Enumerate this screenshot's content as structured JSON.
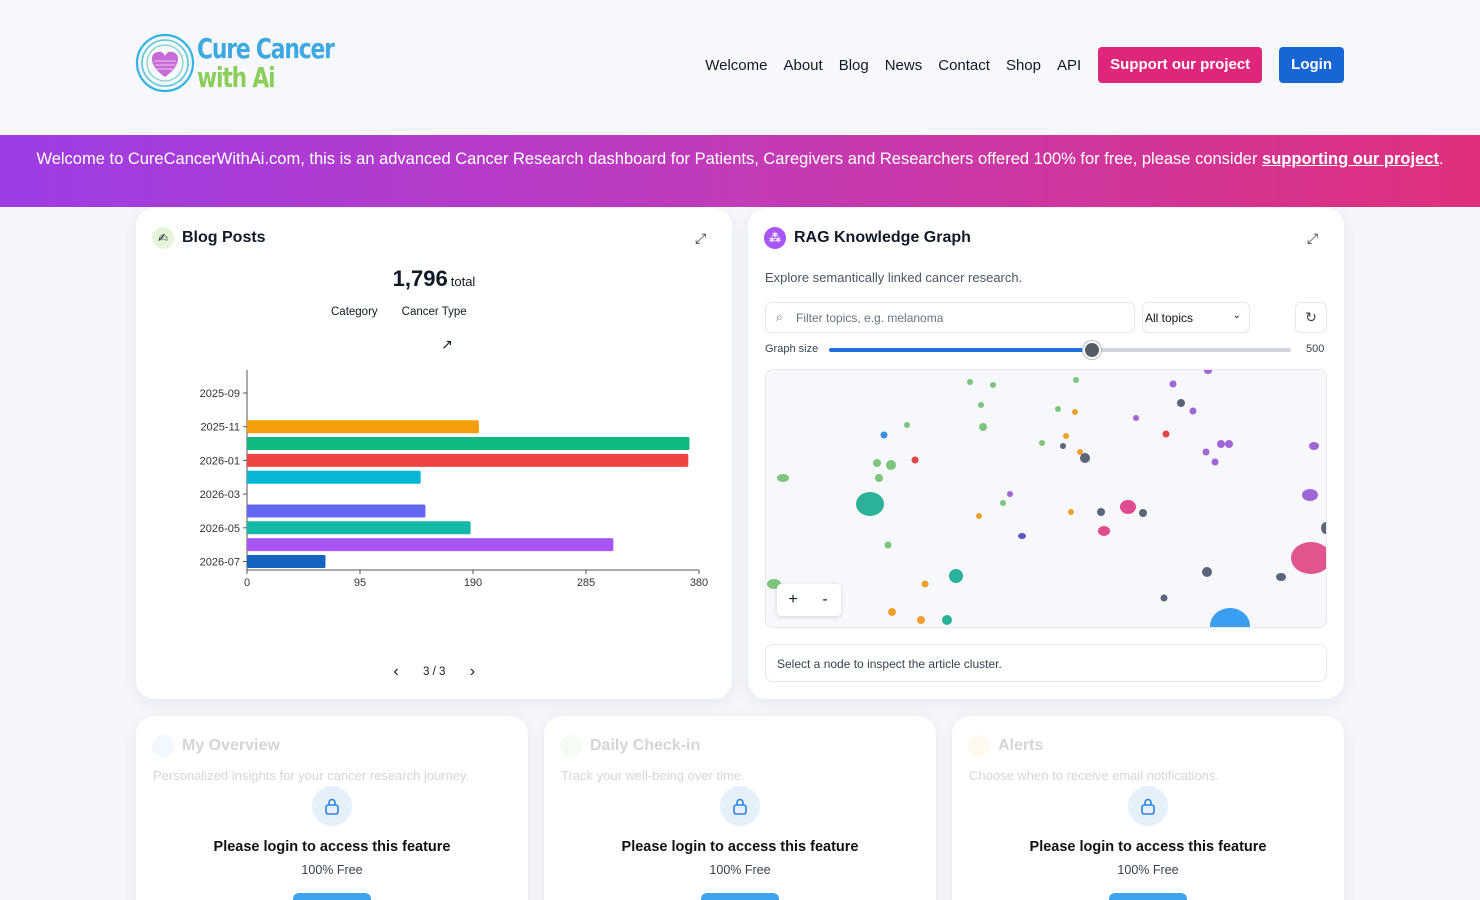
{
  "brand": {
    "line1": "Cure Cancer",
    "line2": "with Ai"
  },
  "nav": {
    "items": [
      "Welcome",
      "About",
      "Blog",
      "News",
      "Contact",
      "Shop",
      "API"
    ],
    "support_label": "Support our project",
    "login_label": "Login"
  },
  "banner": {
    "text_before": "Welcome to CureCancerWithAi.com, this is an advanced Cancer Research dashboard for Patients, Caregivers and Researchers offered 100% for free, please consider ",
    "link_text": "supporting our project",
    "text_after": "."
  },
  "blog": {
    "title": "Blog Posts",
    "total_value": "1,796",
    "total_label": "total",
    "tabs": [
      "Category",
      "Cancer Type"
    ],
    "pager": "3 / 3"
  },
  "chart_data": {
    "type": "bar",
    "orientation": "horizontal",
    "y_tick_labels": [
      "2025-09",
      "2025-11",
      "2026-01",
      "2026-03",
      "2026-05",
      "2026-07"
    ],
    "categories": [
      "2025-11",
      "2025-12",
      "2026-01",
      "2026-02",
      "2026-04",
      "2026-05",
      "2026-06",
      "2026-07"
    ],
    "values": [
      195,
      372,
      371,
      146,
      150,
      188,
      308,
      66
    ],
    "colors": [
      "#f59e0b",
      "#10b981",
      "#ef4444",
      "#06b6d4",
      "#6366f1",
      "#14b8a6",
      "#a855f7",
      "#1565c0"
    ],
    "xticks": [
      0,
      95,
      190,
      285,
      380
    ],
    "xlim": [
      0,
      380
    ],
    "title": "",
    "xlabel": "",
    "ylabel": ""
  },
  "rag": {
    "title": "RAG Knowledge Graph",
    "subtitle": "Explore semantically linked cancer research.",
    "filter_placeholder": "Filter topics, e.g. melanoma",
    "topic_selected": "All topics",
    "graph_size_label": "Graph size",
    "graph_size_value": "500",
    "graph_size_fraction": 0.57,
    "zoom_in": "+",
    "zoom_out": "-",
    "inspect_text": "Select a node to inspect the article cluster."
  },
  "locked": [
    {
      "title": "My Overview",
      "subtitle": "Personalized insights for your cancer research journey.",
      "message": "Please login to access this feature",
      "free": "100% Free"
    },
    {
      "title": "Daily Check-in",
      "subtitle": "Track your well-being over time.",
      "message": "Please login to access this feature",
      "free": "100% Free"
    },
    {
      "title": "Alerts",
      "subtitle": "Choose when to receive email notifications.",
      "message": "Please login to access this feature",
      "free": "100% Free"
    }
  ],
  "colors": {
    "support": "#e0267a",
    "login": "#1866d6",
    "slider": "#1f6fe0"
  },
  "icons": [
    "heart-logo-icon",
    "pen-icon",
    "expand-icon",
    "trend-icon",
    "chevron-left-icon",
    "chevron-right-icon",
    "graph-icon",
    "search-icon",
    "chevron-down-icon",
    "refresh-icon",
    "lock-icon"
  ]
}
